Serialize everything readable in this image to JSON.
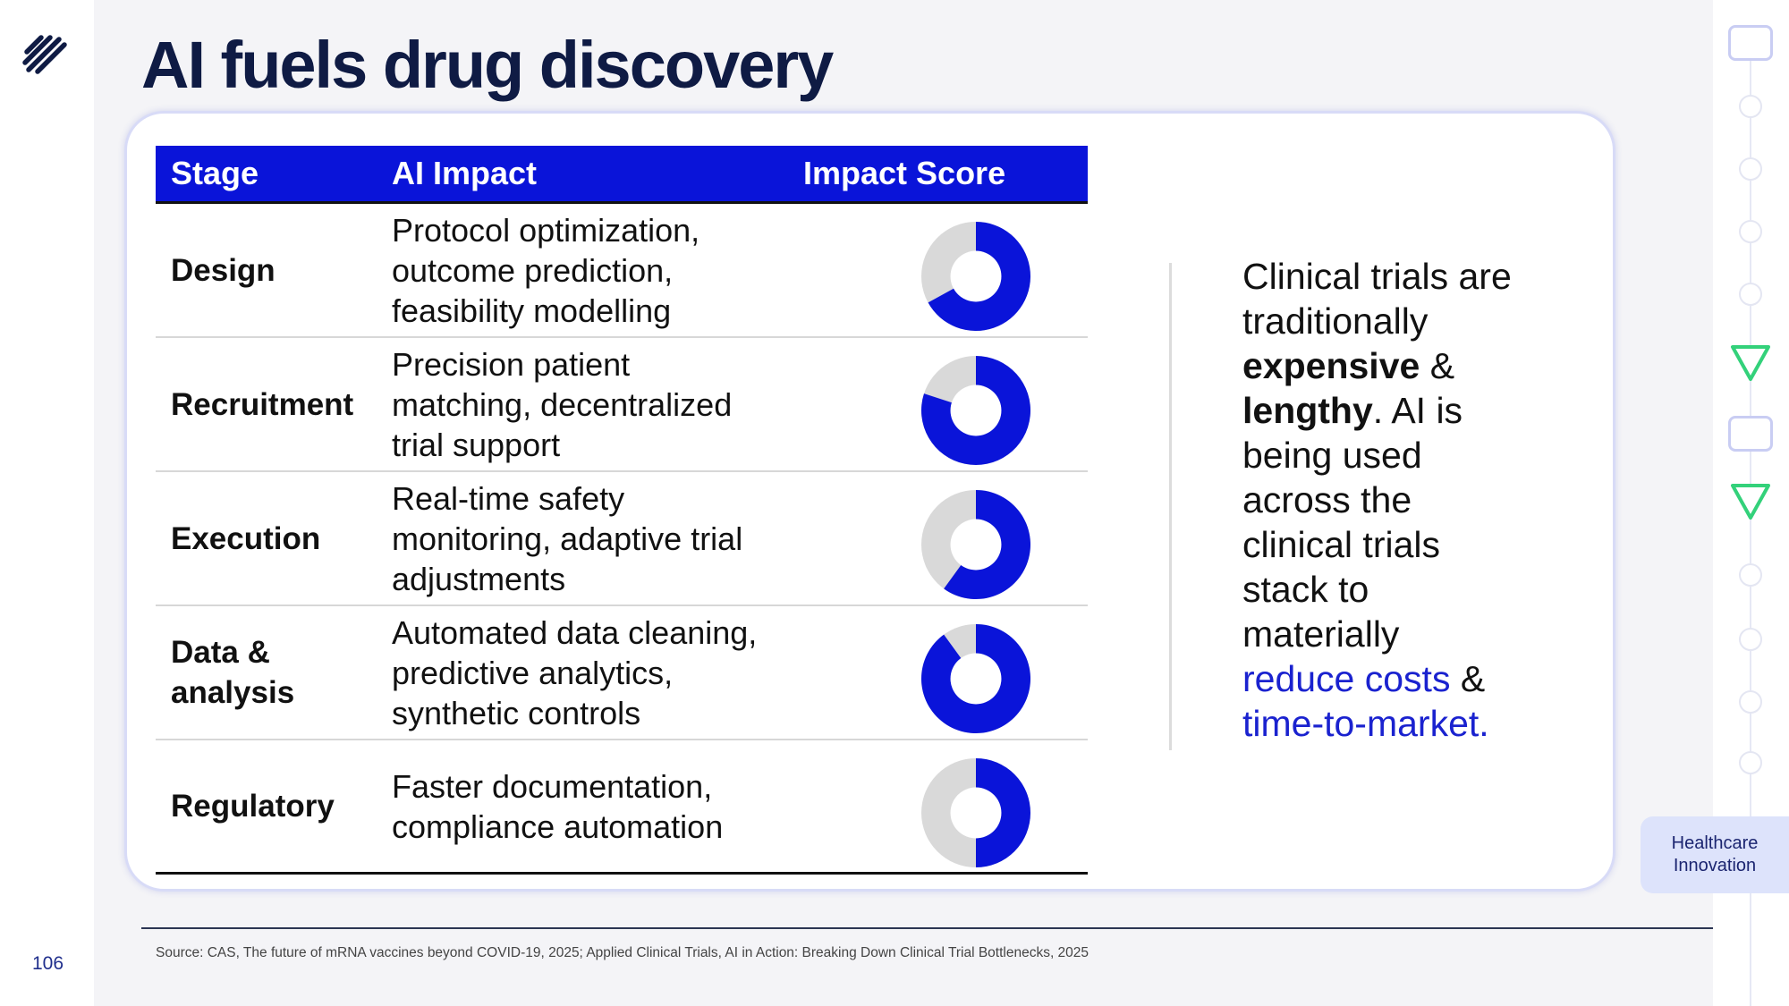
{
  "slide": {
    "title": "AI fuels drug discovery",
    "page_number": "106",
    "section_tag": {
      "line1": "Healthcare",
      "line2": "Innovation"
    }
  },
  "table": {
    "headers": {
      "stage": "Stage",
      "impact": "AI Impact",
      "score": "Impact Score"
    },
    "rows": [
      {
        "stage_l1": "Design",
        "stage_l2": "",
        "impact_l1": "Protocol optimization,",
        "impact_l2": "outcome prediction,",
        "impact_l3": "feasibility modelling",
        "score": 0.67
      },
      {
        "stage_l1": "Recruitment",
        "stage_l2": "",
        "impact_l1": "Precision patient",
        "impact_l2": "matching, decentralized",
        "impact_l3": "trial support",
        "score": 0.8
      },
      {
        "stage_l1": "Execution",
        "stage_l2": "",
        "impact_l1": "Real-time safety",
        "impact_l2": "monitoring, adaptive trial",
        "impact_l3": "adjustments",
        "score": 0.6
      },
      {
        "stage_l1": "Data &",
        "stage_l2": "analysis",
        "impact_l1": "Automated data cleaning,",
        "impact_l2": "predictive analytics,",
        "impact_l3": "synthetic controls",
        "score": 0.9
      },
      {
        "stage_l1": "Regulatory",
        "stage_l2": "",
        "impact_l1": "Faster documentation,",
        "impact_l2": "compliance automation",
        "impact_l3": "",
        "score": 0.5
      }
    ],
    "colors": {
      "filled": "#0a14d9",
      "empty": "#d9d9d9",
      "header_bg": "#0a14d9"
    }
  },
  "callout": {
    "l1": "Clinical trials are",
    "l2": "traditionally",
    "l3_bold": "expensive",
    "l3_rest": " &",
    "l4_bold": "lengthy",
    "l4_rest": ". AI is",
    "l5": "being used",
    "l6": "across the",
    "l7": "clinical trials",
    "l8": "stack to",
    "l9": "materially",
    "l10_blue": "reduce costs",
    "l10_rest": " &",
    "l11_blue": "time-to-market."
  },
  "source": "Source: CAS, The future of mRNA vaccines beyond COVID-19, 2025; Applied Clinical Trials, AI in Action: Breaking Down Clinical Trial Bottlenecks, 2025",
  "nav_rail": {
    "items": [
      "square",
      "circle",
      "circle",
      "circle",
      "circle",
      "triangle",
      "square",
      "triangle",
      "circle",
      "circle",
      "circle",
      "circle"
    ],
    "triangle_color": "#33d17a",
    "square_color": "#c9cdf3"
  }
}
